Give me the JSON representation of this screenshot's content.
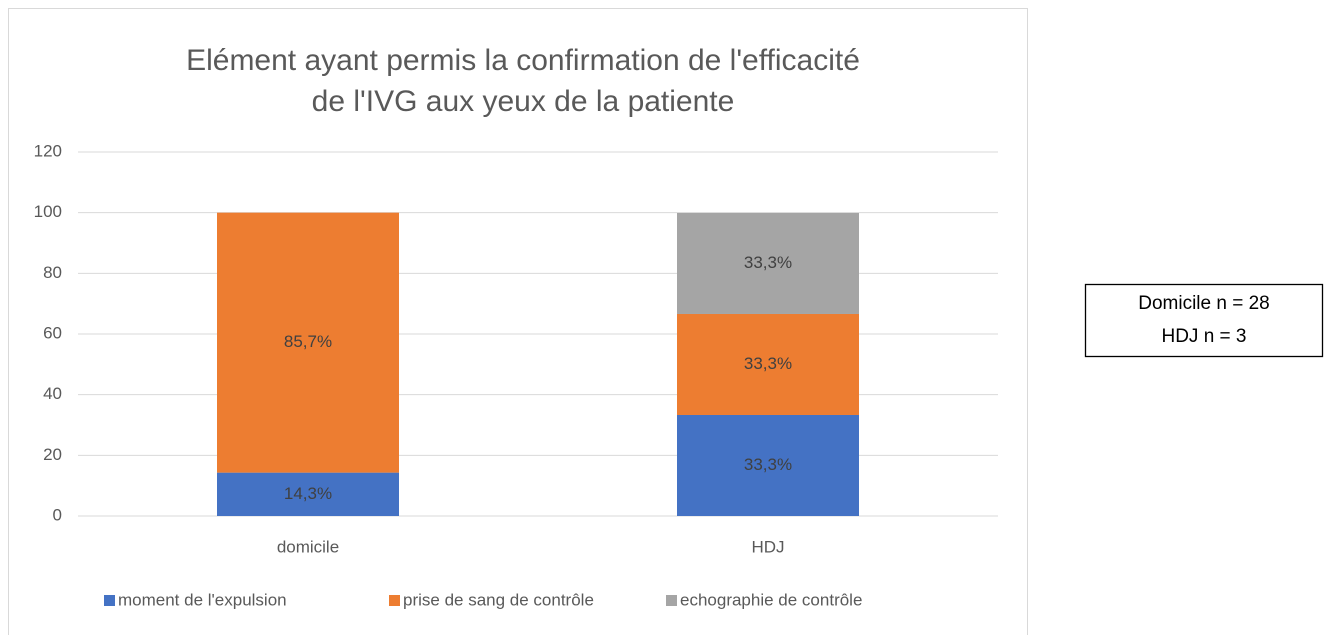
{
  "chart_data": {
    "type": "stacked_bar",
    "title": [
      "Elément ayant permis la confirmation de l'efficacité",
      "de l'IVG aux yeux de la patiente"
    ],
    "categories": [
      "domicile",
      "HDJ"
    ],
    "series": [
      {
        "name": "moment de l'expulsion",
        "color": "#4472c4",
        "values": [
          14.3,
          33.3
        ],
        "value_labels": [
          "14,3%",
          "33,3%"
        ]
      },
      {
        "name": "prise de sang de contrôle",
        "color": "#ed7d31",
        "values": [
          85.7,
          33.3
        ],
        "value_labels": [
          "85,7%",
          "33,3%"
        ]
      },
      {
        "name": "echographie de contrôle",
        "color": "#a5a5a5",
        "values": [
          null,
          33.3
        ],
        "value_labels": [
          null,
          "33,3%"
        ]
      }
    ],
    "ylim": [
      0,
      120
    ],
    "yticks": [
      0,
      20,
      40,
      60,
      80,
      100,
      120
    ],
    "grid": true,
    "legend": "bottom",
    "annotations": [
      "Domicile  n = 28",
      "HDJ  n = 3"
    ]
  }
}
